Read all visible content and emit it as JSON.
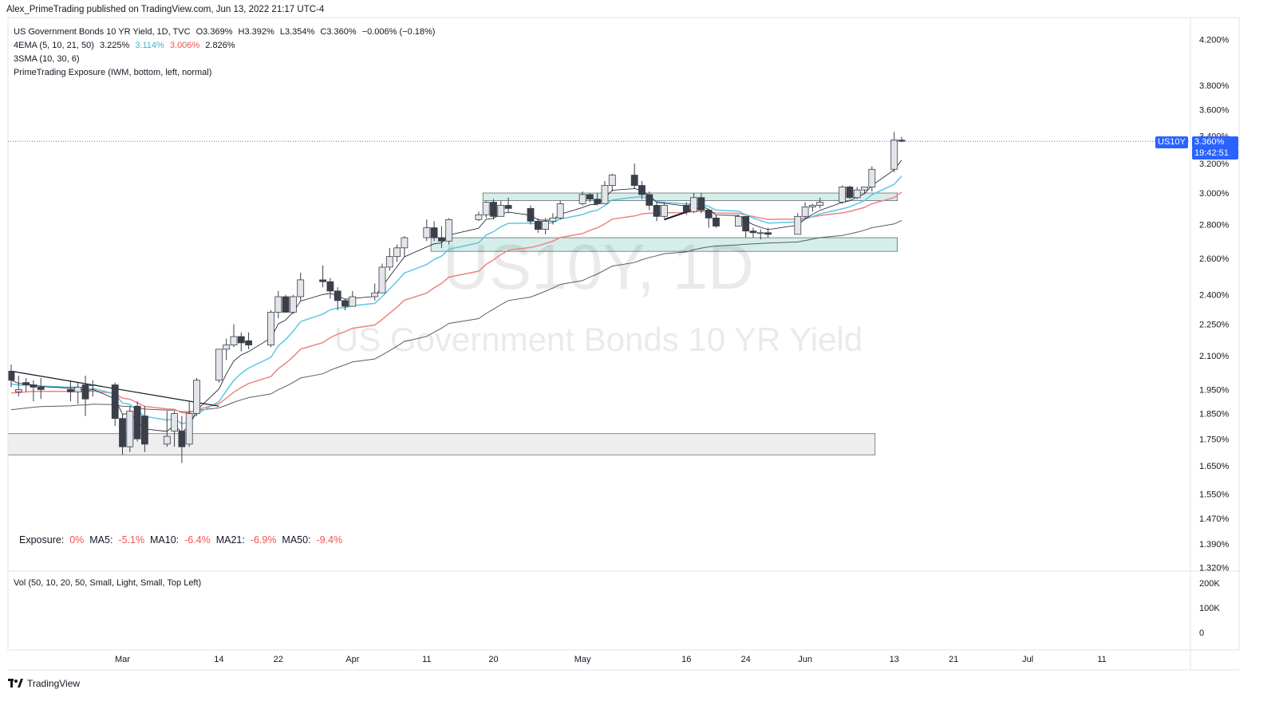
{
  "header": {
    "published": "Alex_PrimeTrading published on TradingView.com, Jun 13, 2022 21:17 UTC-4"
  },
  "legend": {
    "symbol_line": "US Government Bonds 10 YR Yield, 1D, TVC",
    "ohlc": {
      "o": "O3.369%",
      "h": "H3.392%",
      "l": "L3.354%",
      "c": "C3.360%",
      "chg": "−0.006% (−0.18%)"
    },
    "ema": {
      "label": "4EMA (5, 10, 21, 50)",
      "v1": "3.225%",
      "v2": "3.114%",
      "v3": "3.006%",
      "v4": "2.826%"
    },
    "sma": {
      "label": "3SMA (10, 30, 6)"
    },
    "exposure_indicator": {
      "label": "PrimeTrading Exposure (IWM, bottom, left, normal)"
    }
  },
  "watermark": {
    "symbol": "US10Y, 1D",
    "name": "US Government Bonds 10 YR Yield"
  },
  "exposure": {
    "label": "Exposure:",
    "value": "0%",
    "ma5_label": "MA5:",
    "ma5": "-5.1%",
    "ma10_label": "MA10:",
    "ma10": "-6.4%",
    "ma21_label": "MA21:",
    "ma21": "-6.9%",
    "ma50_label": "MA50:",
    "ma50": "-9.4%"
  },
  "volume": {
    "title": "Vol (50, 10, 20, 50, Small, Light, Small, Top Left)",
    "axis": [
      "200K",
      "100K",
      "0"
    ]
  },
  "price_tag": {
    "symbol": "US10Y",
    "price": "3.360%",
    "countdown": "19:42:51"
  },
  "footer": {
    "brand": "TradingView"
  },
  "colors": {
    "ema5": "#131722",
    "ema10": "#5ec6e6",
    "ema21": "#ef8383",
    "ema50": "#5d5d5d",
    "bear": "#3b3f4a",
    "bull": "#e3e5ea",
    "zone_teal": "#d6eeea",
    "zone_gray": "#eeeeee",
    "price_line": "#2962ff",
    "neg": "#ef5350"
  },
  "chart_data": {
    "type": "candlestick",
    "title": "US Government Bonds 10 YR Yield, 1D, TVC",
    "y_axis": {
      "scale": "log",
      "ticks": [
        "4.200%",
        "3.800%",
        "3.600%",
        "3.400%",
        "3.200%",
        "3.000%",
        "2.800%",
        "2.600%",
        "2.400%",
        "2.250%",
        "2.100%",
        "1.950%",
        "1.850%",
        "1.750%",
        "1.650%",
        "1.550%",
        "1.470%",
        "1.390%",
        "1.320%"
      ],
      "range": [
        1.3,
        4.3
      ]
    },
    "x_axis": {
      "ticks": [
        "Mar",
        "14",
        "22",
        "Apr",
        "11",
        "20",
        "May",
        "16",
        "24",
        "Jun",
        "13",
        "21",
        "Jul",
        "11"
      ]
    },
    "zones": [
      {
        "from_date": "2022-04-19",
        "to_date": "2022-06-13",
        "low": 2.95,
        "high": 3.0,
        "color": "teal"
      },
      {
        "from_date": "2022-04-12",
        "to_date": "2022-06-13",
        "low": 2.64,
        "high": 2.72,
        "color": "teal"
      },
      {
        "from_date": "2022-02-14",
        "to_date": "2022-06-10",
        "low": 1.69,
        "high": 1.77,
        "color": "gray"
      }
    ],
    "trendlines": [
      {
        "from": [
          "2022-02-14",
          2.03
        ],
        "to": [
          "2022-03-14",
          1.88
        ]
      },
      {
        "from": [
          "2022-05-13",
          2.83
        ],
        "to": [
          "2022-05-18",
          2.91
        ]
      }
    ],
    "candles": [
      {
        "d": "2022-02-14",
        "o": 2.03,
        "h": 2.06,
        "l": 1.96,
        "c": 1.99
      },
      {
        "d": "2022-02-15",
        "o": 1.94,
        "h": 2.01,
        "l": 1.92,
        "c": 1.95
      },
      {
        "d": "2022-02-16",
        "o": 1.98,
        "h": 2.0,
        "l": 1.94,
        "c": 1.97
      },
      {
        "d": "2022-02-17",
        "o": 1.97,
        "h": 1.99,
        "l": 1.9,
        "c": 1.96
      },
      {
        "d": "2022-02-18",
        "o": 1.96,
        "h": 2.0,
        "l": 1.91,
        "c": 1.95
      },
      {
        "d": "2022-02-22",
        "o": 1.95,
        "h": 1.99,
        "l": 1.9,
        "c": 1.94
      },
      {
        "d": "2022-02-23",
        "o": 1.94,
        "h": 1.98,
        "l": 1.89,
        "c": 1.96
      },
      {
        "d": "2022-02-24",
        "o": 1.97,
        "h": 2.01,
        "l": 1.84,
        "c": 1.91
      },
      {
        "d": "2022-02-25",
        "o": 1.97,
        "h": 1.99,
        "l": 1.92,
        "c": 1.97
      },
      {
        "d": "2022-02-28",
        "o": 1.97,
        "h": 1.98,
        "l": 1.8,
        "c": 1.83
      },
      {
        "d": "2022-03-01",
        "o": 1.83,
        "h": 1.85,
        "l": 1.69,
        "c": 1.72
      },
      {
        "d": "2022-03-02",
        "o": 1.72,
        "h": 1.88,
        "l": 1.7,
        "c": 1.86
      },
      {
        "d": "2022-03-03",
        "o": 1.88,
        "h": 1.9,
        "l": 1.74,
        "c": 1.75
      },
      {
        "d": "2022-03-04",
        "o": 1.84,
        "h": 1.88,
        "l": 1.7,
        "c": 1.73
      },
      {
        "d": "2022-03-07",
        "o": 1.73,
        "h": 1.86,
        "l": 1.72,
        "c": 1.76
      },
      {
        "d": "2022-03-08",
        "o": 1.78,
        "h": 1.86,
        "l": 1.72,
        "c": 1.85
      },
      {
        "d": "2022-03-09",
        "o": 1.78,
        "h": 1.84,
        "l": 1.66,
        "c": 1.72
      },
      {
        "d": "2022-03-10",
        "o": 1.73,
        "h": 1.9,
        "l": 1.72,
        "c": 1.85
      },
      {
        "d": "2022-03-11",
        "o": 1.85,
        "h": 2.0,
        "l": 1.84,
        "c": 1.99
      },
      {
        "d": "2022-03-14",
        "o": 1.99,
        "h": 2.13,
        "l": 1.98,
        "c": 2.13
      },
      {
        "d": "2022-03-15",
        "o": 2.13,
        "h": 2.18,
        "l": 2.08,
        "c": 2.15
      },
      {
        "d": "2022-03-16",
        "o": 2.15,
        "h": 2.25,
        "l": 2.14,
        "c": 2.19
      },
      {
        "d": "2022-03-17",
        "o": 2.19,
        "h": 2.21,
        "l": 2.12,
        "c": 2.16
      },
      {
        "d": "2022-03-18",
        "o": 2.17,
        "h": 2.21,
        "l": 2.13,
        "c": 2.15
      },
      {
        "d": "2022-03-21",
        "o": 2.15,
        "h": 2.32,
        "l": 2.14,
        "c": 2.31
      },
      {
        "d": "2022-03-22",
        "o": 2.31,
        "h": 2.42,
        "l": 2.28,
        "c": 2.39
      },
      {
        "d": "2022-03-23",
        "o": 2.39,
        "h": 2.4,
        "l": 2.31,
        "c": 2.31
      },
      {
        "d": "2022-03-24",
        "o": 2.31,
        "h": 2.4,
        "l": 2.3,
        "c": 2.39
      },
      {
        "d": "2022-03-25",
        "o": 2.39,
        "h": 2.52,
        "l": 2.37,
        "c": 2.48
      },
      {
        "d": "2022-03-28",
        "o": 2.48,
        "h": 2.56,
        "l": 2.44,
        "c": 2.47
      },
      {
        "d": "2022-03-29",
        "o": 2.47,
        "h": 2.49,
        "l": 2.38,
        "c": 2.42
      },
      {
        "d": "2022-03-30",
        "o": 2.42,
        "h": 2.44,
        "l": 2.32,
        "c": 2.37
      },
      {
        "d": "2022-03-31",
        "o": 2.37,
        "h": 2.38,
        "l": 2.32,
        "c": 2.34
      },
      {
        "d": "2022-04-01",
        "o": 2.34,
        "h": 2.42,
        "l": 2.34,
        "c": 2.39
      },
      {
        "d": "2022-04-04",
        "o": 2.39,
        "h": 2.46,
        "l": 2.37,
        "c": 2.41
      },
      {
        "d": "2022-04-05",
        "o": 2.41,
        "h": 2.57,
        "l": 2.41,
        "c": 2.55
      },
      {
        "d": "2022-04-06",
        "o": 2.55,
        "h": 2.66,
        "l": 2.53,
        "c": 2.61
      },
      {
        "d": "2022-04-07",
        "o": 2.61,
        "h": 2.68,
        "l": 2.58,
        "c": 2.66
      },
      {
        "d": "2022-04-08",
        "o": 2.66,
        "h": 2.73,
        "l": 2.61,
        "c": 2.72
      },
      {
        "d": "2022-04-11",
        "o": 2.72,
        "h": 2.83,
        "l": 2.7,
        "c": 2.78
      },
      {
        "d": "2022-04-12",
        "o": 2.78,
        "h": 2.82,
        "l": 2.7,
        "c": 2.72
      },
      {
        "d": "2022-04-13",
        "o": 2.72,
        "h": 2.79,
        "l": 2.66,
        "c": 2.7
      },
      {
        "d": "2022-04-14",
        "o": 2.7,
        "h": 2.84,
        "l": 2.68,
        "c": 2.83
      },
      {
        "d": "2022-04-18",
        "o": 2.83,
        "h": 2.88,
        "l": 2.82,
        "c": 2.86
      },
      {
        "d": "2022-04-19",
        "o": 2.86,
        "h": 2.95,
        "l": 2.84,
        "c": 2.94
      },
      {
        "d": "2022-04-20",
        "o": 2.94,
        "h": 2.96,
        "l": 2.83,
        "c": 2.85
      },
      {
        "d": "2022-04-21",
        "o": 2.85,
        "h": 2.95,
        "l": 2.85,
        "c": 2.92
      },
      {
        "d": "2022-04-22",
        "o": 2.92,
        "h": 2.97,
        "l": 2.87,
        "c": 2.9
      },
      {
        "d": "2022-04-25",
        "o": 2.9,
        "h": 2.92,
        "l": 2.8,
        "c": 2.82
      },
      {
        "d": "2022-04-26",
        "o": 2.82,
        "h": 2.84,
        "l": 2.75,
        "c": 2.77
      },
      {
        "d": "2022-04-27",
        "o": 2.77,
        "h": 2.84,
        "l": 2.74,
        "c": 2.82
      },
      {
        "d": "2022-04-28",
        "o": 2.82,
        "h": 2.87,
        "l": 2.8,
        "c": 2.84
      },
      {
        "d": "2022-04-29",
        "o": 2.84,
        "h": 2.95,
        "l": 2.83,
        "c": 2.93
      },
      {
        "d": "2022-05-02",
        "o": 2.93,
        "h": 3.01,
        "l": 2.92,
        "c": 2.99
      },
      {
        "d": "2022-05-03",
        "o": 2.99,
        "h": 3.0,
        "l": 2.94,
        "c": 2.96
      },
      {
        "d": "2022-05-04",
        "o": 2.96,
        "h": 3.0,
        "l": 2.92,
        "c": 2.93
      },
      {
        "d": "2022-05-05",
        "o": 2.93,
        "h": 3.08,
        "l": 2.93,
        "c": 3.05
      },
      {
        "d": "2022-05-06",
        "o": 3.05,
        "h": 3.13,
        "l": 3.01,
        "c": 3.12
      },
      {
        "d": "2022-05-09",
        "o": 3.12,
        "h": 3.2,
        "l": 3.03,
        "c": 3.05
      },
      {
        "d": "2022-05-10",
        "o": 3.05,
        "h": 3.08,
        "l": 2.96,
        "c": 2.99
      },
      {
        "d": "2022-05-11",
        "o": 2.99,
        "h": 3.01,
        "l": 2.89,
        "c": 2.92
      },
      {
        "d": "2022-05-12",
        "o": 2.92,
        "h": 2.94,
        "l": 2.82,
        "c": 2.85
      },
      {
        "d": "2022-05-13",
        "o": 2.85,
        "h": 2.94,
        "l": 2.84,
        "c": 2.92
      },
      {
        "d": "2022-05-16",
        "o": 2.92,
        "h": 2.94,
        "l": 2.86,
        "c": 2.88
      },
      {
        "d": "2022-05-17",
        "o": 2.88,
        "h": 3.0,
        "l": 2.87,
        "c": 2.97
      },
      {
        "d": "2022-05-18",
        "o": 2.97,
        "h": 3.0,
        "l": 2.87,
        "c": 2.89
      },
      {
        "d": "2022-05-19",
        "o": 2.89,
        "h": 2.9,
        "l": 2.78,
        "c": 2.84
      },
      {
        "d": "2022-05-20",
        "o": 2.84,
        "h": 2.86,
        "l": 2.78,
        "c": 2.79
      },
      {
        "d": "2022-05-23",
        "o": 2.79,
        "h": 2.86,
        "l": 2.79,
        "c": 2.85
      },
      {
        "d": "2022-05-24",
        "o": 2.85,
        "h": 2.85,
        "l": 2.72,
        "c": 2.76
      },
      {
        "d": "2022-05-25",
        "o": 2.76,
        "h": 2.78,
        "l": 2.72,
        "c": 2.75
      },
      {
        "d": "2022-05-26",
        "o": 2.75,
        "h": 2.77,
        "l": 2.71,
        "c": 2.75
      },
      {
        "d": "2022-05-27",
        "o": 2.75,
        "h": 2.78,
        "l": 2.72,
        "c": 2.74
      },
      {
        "d": "2022-05-31",
        "o": 2.74,
        "h": 2.87,
        "l": 2.74,
        "c": 2.85
      },
      {
        "d": "2022-06-01",
        "o": 2.85,
        "h": 2.94,
        "l": 2.84,
        "c": 2.91
      },
      {
        "d": "2022-06-02",
        "o": 2.91,
        "h": 2.93,
        "l": 2.88,
        "c": 2.92
      },
      {
        "d": "2022-06-03",
        "o": 2.92,
        "h": 2.97,
        "l": 2.9,
        "c": 2.94
      },
      {
        "d": "2022-06-06",
        "o": 2.94,
        "h": 3.05,
        "l": 2.93,
        "c": 3.04
      },
      {
        "d": "2022-06-07",
        "o": 3.04,
        "h": 3.05,
        "l": 2.96,
        "c": 2.97
      },
      {
        "d": "2022-06-08",
        "o": 2.97,
        "h": 3.04,
        "l": 2.96,
        "c": 3.02
      },
      {
        "d": "2022-06-09",
        "o": 3.02,
        "h": 3.04,
        "l": 3.0,
        "c": 3.04
      },
      {
        "d": "2022-06-10",
        "o": 3.04,
        "h": 3.18,
        "l": 3.01,
        "c": 3.16
      },
      {
        "d": "2022-06-13",
        "o": 3.16,
        "h": 3.43,
        "l": 3.14,
        "c": 3.37
      },
      {
        "d": "2022-06-14",
        "o": 3.369,
        "h": 3.392,
        "l": 3.354,
        "c": 3.36
      }
    ],
    "series": [
      {
        "name": "4EMA 5",
        "last": 3.225
      },
      {
        "name": "4EMA 10",
        "last": 3.114
      },
      {
        "name": "4EMA 21",
        "last": 3.006
      },
      {
        "name": "4EMA 50",
        "last": 2.826
      }
    ]
  }
}
